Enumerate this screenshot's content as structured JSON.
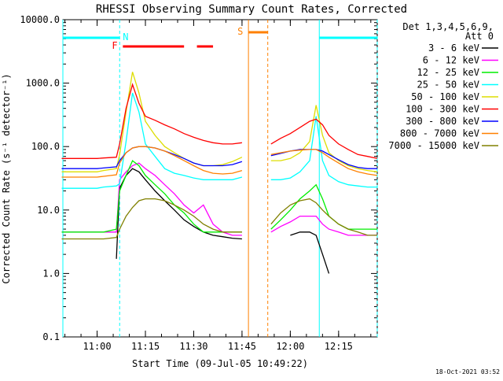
{
  "chart_data": {
    "type": "line",
    "title": "RHESSI Observing Summary Count Rates, Corrected",
    "xlabel": "Start Time (09-Jul-05 10:49:22)",
    "ylabel": "Corrected Count Rate (s⁻¹ detector⁻¹)",
    "xlim": [
      "10:49:22",
      "12:27:00"
    ],
    "ylim": [
      0.1,
      10000
    ],
    "yscale": "log",
    "x_ticks": [
      "11:00",
      "11:15",
      "11:30",
      "11:45",
      "12:00",
      "12:15"
    ],
    "y_ticks": [
      "0.1",
      "1.0",
      "10.0",
      "100.0",
      "1000.0",
      "10000.0"
    ],
    "legend_header": [
      "Det 1,3,4,5,6,9,",
      "Att 0"
    ],
    "legend_position": "right",
    "footer_date": "18-Oct-2021 03:52",
    "colors": {
      "3-6": "#000000",
      "6-12": "#ff00ff",
      "12-25": "#00ee00",
      "25-50": "#00ffff",
      "50-100": "#dddd00",
      "100-300": "#ff0000",
      "300-800": "#0000ff",
      "800-7000": "#ff8000",
      "7000-15000": "#808000",
      "night": "#00ffff",
      "saa": "#ff8000",
      "flare": "#ff0000"
    },
    "annotations": {
      "night_label": "N",
      "saa_label": "S",
      "flare_label": "F",
      "night_intervals": [
        [
          "10:49:22",
          "11:07:00"
        ],
        [
          "12:09:00",
          "12:27:00"
        ]
      ],
      "saa_interval": [
        "11:47:00",
        "11:53:00"
      ],
      "flare_intervals": [
        [
          "11:08:00",
          "11:27:00"
        ],
        [
          "11:31:00",
          "11:36:00"
        ]
      ],
      "night_lines": [
        "10:49:22",
        "11:07:00",
        "12:09:00",
        "12:27:00"
      ],
      "saa_lines": [
        "11:47:00",
        "11:53:00"
      ]
    },
    "x": [
      "10:49",
      "10:55",
      "11:00",
      "11:02",
      "11:06",
      "11:07",
      "11:09",
      "11:11",
      "11:13",
      "11:15",
      "11:18",
      "11:21",
      "11:24",
      "11:27",
      "11:30",
      "11:33",
      "11:36",
      "11:39",
      "11:42",
      "11:45",
      "11:47",
      "11:54",
      "11:57",
      "12:00",
      "12:03",
      "12:06",
      "12:08",
      "12:10",
      "12:12",
      "12:15",
      "12:18",
      "12:21",
      "12:24",
      "12:27"
    ],
    "series": [
      {
        "name": "3 - 6 keV",
        "values": [
          null,
          null,
          null,
          null,
          1.7,
          22,
          35,
          45,
          40,
          30,
          20,
          14,
          10,
          7,
          5.5,
          4.5,
          4,
          3.8,
          3.6,
          3.5,
          null,
          null,
          null,
          4,
          4.5,
          4.5,
          4,
          2,
          1,
          null,
          null,
          null,
          null,
          null
        ]
      },
      {
        "name": "6 - 12 keV",
        "values": [
          4.5,
          4.5,
          4.5,
          4.5,
          4.5,
          30,
          40,
          50,
          55,
          45,
          35,
          25,
          18,
          12,
          9,
          12,
          6,
          4.5,
          4,
          4,
          null,
          4.5,
          5.5,
          6.5,
          8,
          8,
          8,
          6,
          5,
          4.5,
          4,
          4,
          4,
          4
        ]
      },
      {
        "name": "12 - 25 keV",
        "values": [
          4.5,
          4.5,
          4.5,
          4.5,
          5,
          20,
          35,
          60,
          50,
          35,
          25,
          18,
          12,
          9,
          6,
          4.5,
          4.5,
          4.5,
          4.5,
          4.5,
          null,
          5,
          7,
          10,
          15,
          20,
          25,
          15,
          8,
          6,
          5,
          5,
          5,
          5
        ]
      },
      {
        "name": "25 - 50 keV",
        "values": [
          22,
          22,
          22,
          23,
          24,
          26,
          120,
          700,
          350,
          110,
          70,
          45,
          38,
          35,
          32,
          30,
          30,
          30,
          30,
          33,
          null,
          30,
          30,
          32,
          40,
          60,
          300,
          60,
          35,
          28,
          25,
          24,
          23,
          23
        ]
      },
      {
        "name": "50 - 100 keV",
        "values": [
          40,
          40,
          40,
          42,
          45,
          75,
          350,
          1500,
          700,
          250,
          150,
          100,
          80,
          65,
          55,
          50,
          50,
          52,
          58,
          68,
          null,
          60,
          60,
          65,
          80,
          120,
          450,
          150,
          80,
          60,
          50,
          45,
          42,
          40
        ]
      },
      {
        "name": "100 - 300 keV",
        "values": [
          65,
          65,
          65,
          66,
          68,
          110,
          400,
          950,
          480,
          300,
          260,
          220,
          190,
          160,
          140,
          125,
          115,
          110,
          110,
          115,
          null,
          110,
          135,
          160,
          200,
          250,
          270,
          220,
          150,
          110,
          90,
          75,
          70,
          65
        ]
      },
      {
        "name": "300 - 800 keV",
        "values": [
          45,
          45,
          45,
          46,
          48,
          60,
          80,
          95,
          100,
          100,
          95,
          85,
          75,
          65,
          55,
          50,
          50,
          50,
          52,
          58,
          null,
          72,
          78,
          85,
          90,
          90,
          90,
          85,
          75,
          62,
          52,
          47,
          45,
          45
        ]
      },
      {
        "name": "800 - 7000 keV",
        "values": [
          33,
          33,
          33,
          34,
          36,
          55,
          80,
          95,
          100,
          100,
          95,
          85,
          72,
          60,
          50,
          42,
          38,
          37,
          38,
          42,
          null,
          75,
          80,
          85,
          88,
          90,
          90,
          80,
          68,
          55,
          45,
          40,
          37,
          35
        ]
      },
      {
        "name": "7000 - 15000 keV",
        "values": [
          3.5,
          3.5,
          3.5,
          3.5,
          3.7,
          5,
          8,
          11,
          14,
          15,
          15,
          14,
          12,
          10,
          8,
          6,
          5,
          4.5,
          4.5,
          4.5,
          null,
          6,
          9,
          12,
          14,
          15,
          13,
          10,
          8,
          6,
          5,
          4.5,
          4,
          4
        ]
      }
    ]
  }
}
